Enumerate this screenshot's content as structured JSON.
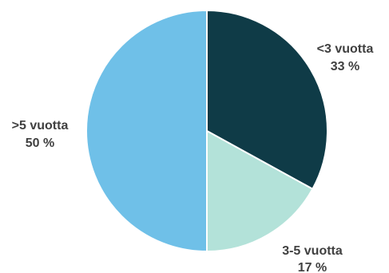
{
  "chart_data": {
    "type": "pie",
    "title": "",
    "start_angle_deg": 0,
    "direction": "clockwise",
    "slices": [
      {
        "label": "<3 vuotta",
        "value": 33,
        "value_text": "33 %",
        "color": "#0f3b47"
      },
      {
        "label": "3-5 vuotta",
        "value": 17,
        "value_text": "17 %",
        "color": "#b3e2d9"
      },
      {
        "label": ">5 vuotta",
        "value": 50,
        "value_text": "50 %",
        "color": "#6fc0e8"
      }
    ]
  }
}
